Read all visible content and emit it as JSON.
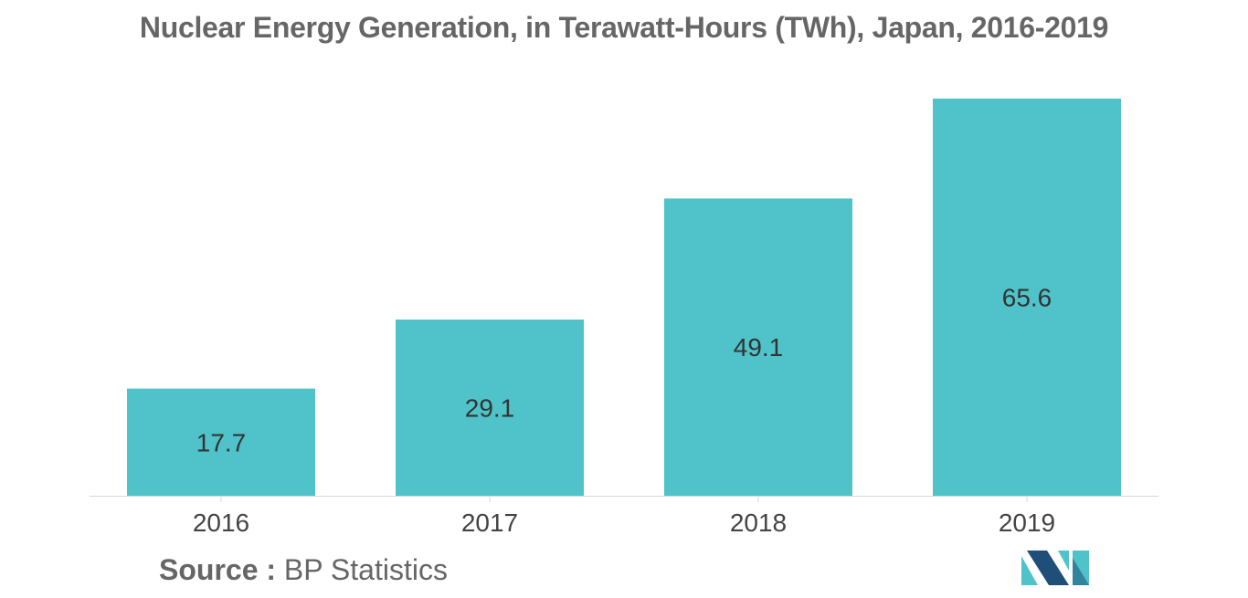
{
  "chart_data": {
    "type": "bar",
    "title": "Nuclear Energy Generation, in Terawatt-Hours (TWh), Japan, 2016-2019",
    "categories": [
      "2016",
      "2017",
      "2018",
      "2019"
    ],
    "values": [
      17.7,
      29.1,
      49.1,
      65.6
    ],
    "value_labels": [
      "17.7",
      "29.1",
      "49.1",
      "65.6"
    ],
    "xlabel": "",
    "ylabel": "",
    "ylim": [
      0,
      65.6
    ],
    "grid": false,
    "legend": "none",
    "bar_color": "#4fc3c9",
    "axis_color": "#d9d9d9"
  },
  "source": {
    "label": "Source :",
    "text": "BP Statistics"
  },
  "logo": {
    "icon": "mordor-intelligence-logo-icon",
    "colors": [
      "#1f4e79",
      "#4fc3c9"
    ]
  }
}
